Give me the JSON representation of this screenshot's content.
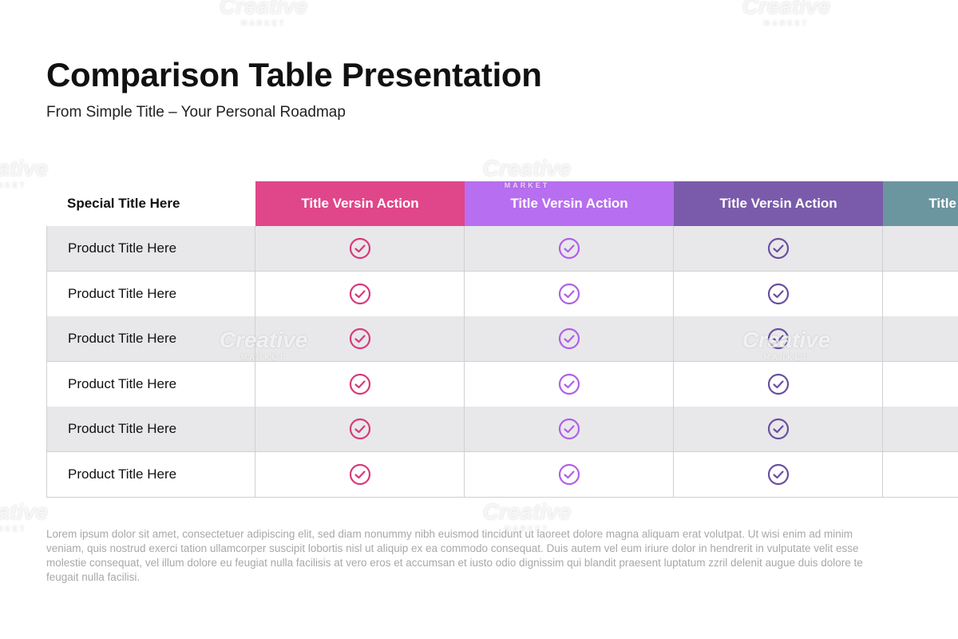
{
  "header": {
    "title": "Comparison Table Presentation",
    "subtitle": "From Simple Title – Your Personal Roadmap"
  },
  "table": {
    "corner": "Special Title Here",
    "columns": [
      {
        "title": "Title Versin Action",
        "color": "#e0468a",
        "check_color": "#d83a7c"
      },
      {
        "title": "Title Versin Action",
        "color": "#b86ef0",
        "check_color": "#b060e8"
      },
      {
        "title": "Title Versin Action",
        "color": "#7a5bab",
        "check_color": "#6a4fa0"
      },
      {
        "title": "Title Versin Action",
        "color": "#6b959f",
        "check_color": "#5f8791"
      }
    ],
    "rows": [
      "Product Title Here",
      "Product Title Here",
      "Product Title Here",
      "Product Title Here",
      "Product Title Here",
      "Product Title Here"
    ]
  },
  "paragraph": "Lorem ipsum dolor sit amet, consectetuer adipiscing elit, sed diam nonummy nibh euismod tincidunt ut laoreet dolore magna aliquam erat volutpat. Ut wisi enim ad minim veniam, quis nostrud exerci tation ullamcorper suscipit lobortis nisl ut aliquip ex ea commodo consequat. Duis autem vel eum iriure dolor in hendrerit in vulputate velit esse molestie consequat, vel illum dolore eu feugiat nulla facilisis at vero eros et accumsan et iusto odio dignissim qui blandit praesent luptatum zzril delenit augue duis dolore te feugait nulla facilisi.",
  "watermark": {
    "brand": "Creative",
    "sub": "MARKET"
  }
}
